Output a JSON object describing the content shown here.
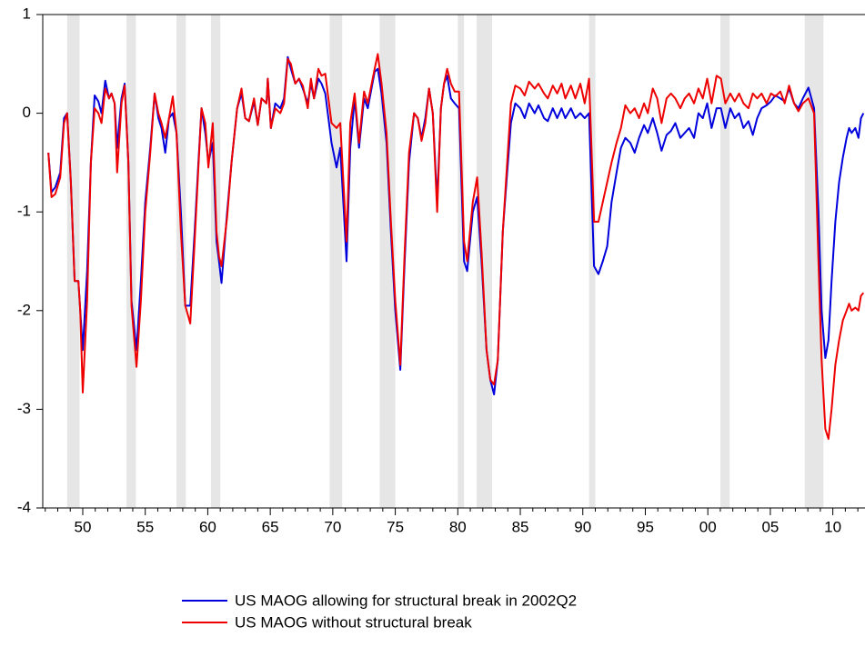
{
  "chart_data": {
    "type": "line",
    "legend_position": "bottom",
    "ylim": [
      -4,
      1
    ],
    "yticks": [
      1,
      0,
      -1,
      -2,
      -3,
      -4
    ],
    "xlim": [
      1946.8,
      2012.5
    ],
    "xticks": [
      {
        "value": 1950,
        "label": "50"
      },
      {
        "value": 1955,
        "label": "55"
      },
      {
        "value": 1960,
        "label": "60"
      },
      {
        "value": 1965,
        "label": "65"
      },
      {
        "value": 1970,
        "label": "70"
      },
      {
        "value": 1975,
        "label": "75"
      },
      {
        "value": 1980,
        "label": "80"
      },
      {
        "value": 1985,
        "label": "85"
      },
      {
        "value": 1990,
        "label": "90"
      },
      {
        "value": 1995,
        "label": "95"
      },
      {
        "value": 2000,
        "label": "00"
      },
      {
        "value": 2005,
        "label": "05"
      },
      {
        "value": 2010,
        "label": "10"
      }
    ],
    "xminor_ticks": [
      1947,
      1948,
      1949,
      1951,
      1952,
      1953,
      1954,
      1956,
      1957,
      1958,
      1959,
      1961,
      1962,
      1963,
      1964,
      1966,
      1967,
      1968,
      1969,
      1971,
      1972,
      1973,
      1974,
      1976,
      1977,
      1978,
      1979,
      1981,
      1982,
      1983,
      1984,
      1986,
      1987,
      1988,
      1989,
      1991,
      1992,
      1993,
      1994,
      1996,
      1997,
      1998,
      1999,
      2001,
      2002,
      2003,
      2004,
      2006,
      2007,
      2008,
      2009,
      2011,
      2012
    ],
    "shaded_color": "#e6e6e6",
    "shaded_ranges": [
      [
        1948.75,
        1949.75
      ],
      [
        1953.5,
        1954.25
      ],
      [
        1957.5,
        1958.25
      ],
      [
        1960.25,
        1961.0
      ],
      [
        1969.75,
        1970.75
      ],
      [
        1973.75,
        1975.0
      ],
      [
        1980.0,
        1980.5
      ],
      [
        1981.5,
        1982.75
      ],
      [
        1990.5,
        1991.0
      ],
      [
        2001.0,
        2001.75
      ],
      [
        2007.75,
        2009.25
      ]
    ],
    "x": [
      1947.25,
      1947.5,
      1947.8,
      1948.2,
      1948.5,
      1948.75,
      1949.05,
      1949.35,
      1949.65,
      1949.8,
      1950.0,
      1950.35,
      1950.65,
      1950.95,
      1951.25,
      1951.5,
      1951.8,
      1952.1,
      1952.3,
      1952.55,
      1952.75,
      1953.1,
      1953.35,
      1953.65,
      1953.9,
      1954.3,
      1954.65,
      1955.0,
      1955.4,
      1955.75,
      1956.05,
      1956.3,
      1956.6,
      1956.9,
      1957.2,
      1957.5,
      1957.85,
      1958.2,
      1958.6,
      1958.95,
      1959.25,
      1959.5,
      1959.8,
      1960.05,
      1960.4,
      1960.7,
      1960.9,
      1961.1,
      1961.55,
      1961.9,
      1962.35,
      1962.7,
      1963.0,
      1963.3,
      1963.7,
      1964.0,
      1964.3,
      1964.7,
      1964.8,
      1965.05,
      1965.4,
      1965.8,
      1966.1,
      1966.4,
      1966.65,
      1967.0,
      1967.3,
      1967.6,
      1968.0,
      1968.25,
      1968.5,
      1968.85,
      1969.1,
      1969.4,
      1969.9,
      1970.3,
      1970.6,
      1971.1,
      1971.4,
      1971.75,
      1972.1,
      1972.5,
      1972.8,
      1973.35,
      1973.6,
      1973.9,
      1974.3,
      1974.65,
      1975.0,
      1975.4,
      1975.75,
      1976.1,
      1976.5,
      1976.8,
      1977.1,
      1977.4,
      1977.7,
      1978.0,
      1978.35,
      1978.65,
      1978.9,
      1979.15,
      1979.45,
      1979.75,
      1980.1,
      1980.5,
      1980.75,
      1981.2,
      1981.55,
      1981.9,
      1982.3,
      1982.6,
      1982.9,
      1983.2,
      1983.6,
      1983.95,
      1984.25,
      1984.6,
      1985.0,
      1985.35,
      1985.7,
      1986.15,
      1986.45,
      1986.9,
      1987.2,
      1987.6,
      1987.95,
      1988.3,
      1988.6,
      1989.05,
      1989.4,
      1989.8,
      1990.15,
      1990.5,
      1990.9,
      1991.25,
      1991.6,
      1991.95,
      1992.3,
      1992.7,
      1993.05,
      1993.4,
      1993.8,
      1994.15,
      1994.5,
      1994.9,
      1995.2,
      1995.6,
      1995.95,
      1996.3,
      1996.7,
      1997.05,
      1997.4,
      1997.8,
      1998.15,
      1998.5,
      1998.9,
      1999.25,
      1999.6,
      1999.95,
      2000.3,
      2000.7,
      2001.05,
      2001.4,
      2001.8,
      2002.15,
      2002.5,
      2002.85,
      2003.25,
      2003.6,
      2003.95,
      2004.3,
      2004.7,
      2005.05,
      2005.4,
      2005.8,
      2006.15,
      2006.5,
      2006.9,
      2007.25,
      2007.6,
      2008.05,
      2008.5,
      2008.85,
      2009.1,
      2009.4,
      2009.65,
      2009.9,
      2010.2,
      2010.5,
      2010.8,
      2011.1,
      2011.3,
      2011.5,
      2011.8,
      2012.05,
      2012.25,
      2012.45
    ],
    "series": [
      {
        "name": "US MAOG allowing for structural break in 2002Q2",
        "color": "#0000dd",
        "values": [
          -0.4,
          -0.8,
          -0.75,
          -0.6,
          -0.05,
          0.0,
          -0.7,
          -1.7,
          -1.7,
          -2.0,
          -2.4,
          -1.6,
          -0.5,
          0.18,
          0.12,
          0.0,
          0.33,
          0.15,
          0.2,
          0.1,
          -0.35,
          0.15,
          0.3,
          -0.5,
          -1.9,
          -2.4,
          -1.7,
          -0.9,
          -0.35,
          0.2,
          -0.05,
          -0.15,
          -0.4,
          -0.05,
          0.0,
          -0.2,
          -1.0,
          -1.95,
          -1.95,
          -1.2,
          -0.5,
          0.05,
          -0.2,
          -0.5,
          -0.3,
          -1.3,
          -1.5,
          -1.72,
          -1.0,
          -0.5,
          0.05,
          0.2,
          -0.05,
          -0.08,
          0.12,
          -0.12,
          0.15,
          0.1,
          0.35,
          -0.15,
          0.1,
          0.05,
          0.15,
          0.57,
          0.45,
          0.3,
          0.35,
          0.25,
          0.1,
          0.3,
          0.15,
          0.35,
          0.3,
          0.2,
          -0.3,
          -0.55,
          -0.35,
          -1.5,
          -0.35,
          0.15,
          -0.35,
          0.15,
          0.05,
          0.42,
          0.45,
          0.2,
          -0.3,
          -1.2,
          -2.0,
          -2.6,
          -1.5,
          -0.5,
          0.0,
          -0.05,
          -0.25,
          -0.05,
          0.25,
          0.0,
          -0.9,
          0.05,
          0.3,
          0.38,
          0.15,
          0.1,
          0.05,
          -1.5,
          -1.6,
          -1.0,
          -0.85,
          -1.5,
          -2.4,
          -2.7,
          -2.85,
          -2.5,
          -1.2,
          -0.6,
          -0.1,
          0.1,
          0.05,
          -0.05,
          0.1,
          0.0,
          0.08,
          -0.05,
          -0.08,
          0.05,
          -0.05,
          0.05,
          -0.05,
          0.05,
          -0.05,
          0.0,
          -0.05,
          0.0,
          -1.55,
          -1.63,
          -1.5,
          -1.35,
          -0.9,
          -0.6,
          -0.35,
          -0.25,
          -0.3,
          -0.4,
          -0.25,
          -0.12,
          -0.2,
          -0.05,
          -0.2,
          -0.38,
          -0.22,
          -0.18,
          -0.1,
          -0.25,
          -0.2,
          -0.15,
          -0.25,
          0.0,
          -0.05,
          0.1,
          -0.15,
          0.05,
          0.05,
          -0.15,
          0.05,
          -0.05,
          0.0,
          -0.15,
          -0.08,
          -0.22,
          -0.05,
          0.05,
          0.08,
          0.12,
          0.18,
          0.15,
          0.12,
          0.25,
          0.1,
          0.05,
          0.15,
          0.26,
          0.05,
          -1.0,
          -2.0,
          -2.48,
          -2.3,
          -1.7,
          -1.1,
          -0.7,
          -0.45,
          -0.25,
          -0.15,
          -0.2,
          -0.15,
          -0.25,
          -0.05,
          0.0
        ]
      },
      {
        "name": "US MAOG without structural break",
        "color": "#ee0000",
        "values": [
          -0.4,
          -0.85,
          -0.82,
          -0.65,
          -0.1,
          0.0,
          -0.7,
          -1.7,
          -1.7,
          -2.0,
          -2.83,
          -1.9,
          -0.5,
          0.05,
          0.0,
          -0.1,
          0.25,
          0.15,
          0.2,
          0.1,
          -0.6,
          0.1,
          0.28,
          -0.5,
          -1.95,
          -2.57,
          -1.9,
          -1.0,
          -0.4,
          0.2,
          0.0,
          -0.1,
          -0.25,
          -0.05,
          0.17,
          -0.2,
          -1.2,
          -1.95,
          -2.13,
          -1.3,
          -0.55,
          0.05,
          -0.1,
          -0.55,
          -0.1,
          -1.2,
          -1.45,
          -1.55,
          -1.05,
          -0.5,
          0.05,
          0.25,
          -0.05,
          -0.08,
          0.15,
          -0.12,
          0.15,
          0.1,
          0.35,
          -0.15,
          0.05,
          0.0,
          0.1,
          0.55,
          0.5,
          0.3,
          0.35,
          0.28,
          0.05,
          0.35,
          0.15,
          0.45,
          0.38,
          0.4,
          -0.1,
          -0.15,
          -0.1,
          -1.3,
          -0.1,
          0.2,
          -0.3,
          0.22,
          0.1,
          0.45,
          0.6,
          0.3,
          -0.2,
          -1.1,
          -1.9,
          -2.55,
          -1.4,
          -0.4,
          0.0,
          -0.05,
          -0.28,
          -0.1,
          0.25,
          0.0,
          -1.0,
          0.05,
          0.3,
          0.45,
          0.3,
          0.22,
          0.22,
          -1.3,
          -1.5,
          -0.9,
          -0.65,
          -1.4,
          -2.4,
          -2.7,
          -2.75,
          -2.5,
          -1.2,
          -0.5,
          0.1,
          0.28,
          0.25,
          0.18,
          0.32,
          0.25,
          0.3,
          0.2,
          0.15,
          0.28,
          0.2,
          0.3,
          0.15,
          0.28,
          0.15,
          0.3,
          0.1,
          0.35,
          -1.1,
          -1.1,
          -0.9,
          -0.7,
          -0.5,
          -0.3,
          -0.15,
          0.08,
          0.0,
          0.05,
          -0.05,
          0.1,
          0.0,
          0.25,
          0.15,
          -0.1,
          0.15,
          0.2,
          0.15,
          0.05,
          0.15,
          0.2,
          0.1,
          0.25,
          0.15,
          0.35,
          0.1,
          0.38,
          0.35,
          0.1,
          0.2,
          0.12,
          0.2,
          0.1,
          0.05,
          0.2,
          0.15,
          0.2,
          0.1,
          0.2,
          0.17,
          0.22,
          0.1,
          0.28,
          0.1,
          0.02,
          0.1,
          0.15,
          0.0,
          -1.5,
          -2.5,
          -3.2,
          -3.3,
          -3.0,
          -2.55,
          -2.3,
          -2.1,
          -2.0,
          -1.93,
          -2.0,
          -1.97,
          -2.0,
          -1.85,
          -1.82
        ]
      }
    ]
  }
}
